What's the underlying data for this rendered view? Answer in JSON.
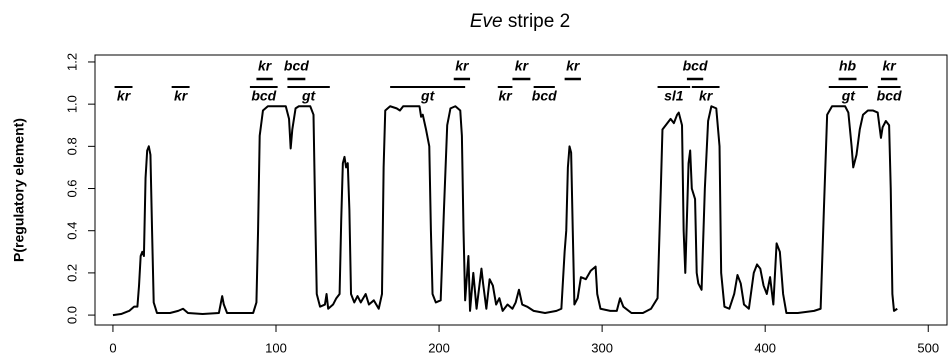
{
  "chart_data": {
    "type": "line",
    "title_parts": [
      "Eve",
      "stripe 2"
    ],
    "y_label": "P(regulatory element)",
    "color": "#000000",
    "xlim": [
      -11,
      511.5
    ],
    "ylim": [
      -0.047,
      1.233
    ],
    "xticks": [
      0,
      100,
      200,
      300,
      400,
      500
    ],
    "yticks": [
      {
        "value": 0,
        "label": "0.0"
      },
      0.2,
      0.4,
      0.6,
      0.8,
      {
        "value": 1,
        "label": "1.0"
      },
      1.2
    ],
    "x": [
      0,
      5,
      10,
      13,
      15,
      16,
      17,
      18,
      19,
      20,
      21,
      22,
      23,
      24,
      25,
      27,
      35,
      40,
      43,
      46,
      55,
      65,
      67,
      68,
      70,
      86,
      88,
      89,
      90,
      92,
      95,
      106,
      108,
      109,
      110,
      112,
      114,
      121,
      123,
      124,
      125,
      127,
      130,
      131,
      132,
      135,
      137,
      139,
      140,
      141,
      142,
      143,
      144,
      145,
      146,
      148,
      150,
      152,
      155,
      157,
      160,
      163,
      165,
      166,
      167,
      170,
      174,
      176,
      178,
      185,
      188,
      189,
      190,
      192,
      194,
      195,
      196,
      198,
      201,
      203,
      205,
      207,
      210,
      213,
      214,
      215,
      216,
      218,
      219,
      221,
      223,
      226,
      227,
      229,
      231,
      233,
      235,
      237,
      239,
      242,
      245,
      247,
      249,
      251,
      254,
      258,
      265,
      272,
      275,
      277,
      278,
      279,
      280,
      281,
      282,
      283,
      285,
      287,
      290,
      293,
      296,
      297,
      299,
      305,
      309,
      311,
      313,
      318,
      325,
      330,
      334,
      336,
      337,
      339,
      342,
      344,
      346,
      347,
      349,
      350,
      351,
      353,
      354,
      355,
      357,
      358,
      359,
      361,
      363,
      365,
      367,
      370,
      372,
      373,
      375,
      378,
      381,
      383,
      385,
      387,
      390,
      393,
      395,
      397,
      399,
      401,
      403,
      405,
      407,
      409,
      411,
      413,
      420,
      430,
      434,
      436,
      438,
      441,
      449,
      451,
      453,
      454,
      456,
      458,
      460,
      463,
      466,
      469,
      470,
      471,
      472,
      474,
      476,
      477,
      478,
      479,
      481
    ],
    "values": [
      0,
      0.005,
      0.02,
      0.04,
      0.04,
      0.14,
      0.28,
      0.3,
      0.28,
      0.65,
      0.78,
      0.8,
      0.76,
      0.4,
      0.06,
      0.01,
      0.01,
      0.02,
      0.03,
      0.01,
      0.005,
      0.01,
      0.09,
      0.05,
      0.01,
      0.01,
      0.06,
      0.4,
      0.85,
      0.97,
      0.99,
      0.99,
      0.93,
      0.79,
      0.88,
      0.98,
      0.99,
      0.99,
      0.95,
      0.5,
      0.1,
      0.04,
      0.05,
      0.1,
      0.03,
      0.05,
      0.08,
      0.1,
      0.45,
      0.72,
      0.75,
      0.7,
      0.72,
      0.5,
      0.1,
      0.06,
      0.09,
      0.06,
      0.1,
      0.05,
      0.07,
      0.03,
      0.1,
      0.7,
      0.97,
      0.99,
      0.98,
      0.97,
      0.99,
      0.99,
      0.99,
      0.94,
      0.95,
      0.88,
      0.8,
      0.4,
      0.1,
      0.06,
      0.07,
      0.5,
      0.9,
      0.98,
      0.99,
      0.97,
      0.85,
      0.4,
      0.07,
      0.28,
      0.02,
      0.2,
      0.03,
      0.22,
      0.15,
      0.03,
      0.17,
      0.14,
      0.05,
      0.08,
      0.02,
      0.05,
      0.03,
      0.06,
      0.12,
      0.05,
      0.04,
      0.02,
      0.01,
      0.02,
      0.03,
      0.3,
      0.4,
      0.7,
      0.8,
      0.77,
      0.4,
      0.05,
      0.08,
      0.18,
      0.17,
      0.21,
      0.23,
      0.1,
      0.03,
      0.02,
      0.02,
      0.08,
      0.04,
      0.01,
      0.01,
      0.03,
      0.08,
      0.6,
      0.88,
      0.9,
      0.93,
      0.91,
      0.95,
      0.96,
      0.9,
      0.4,
      0.2,
      0.72,
      0.78,
      0.6,
      0.55,
      0.2,
      0.15,
      0.12,
      0.6,
      0.92,
      0.99,
      0.98,
      0.8,
      0.2,
      0.04,
      0.03,
      0.1,
      0.19,
      0.15,
      0.05,
      0.03,
      0.2,
      0.24,
      0.22,
      0.14,
      0.1,
      0.18,
      0.05,
      0.34,
      0.3,
      0.1,
      0.01,
      0.01,
      0.02,
      0.03,
      0.5,
      0.95,
      0.99,
      0.99,
      0.96,
      0.8,
      0.7,
      0.76,
      0.88,
      0.95,
      0.97,
      0.97,
      0.96,
      0.9,
      0.84,
      0.89,
      0.92,
      0.9,
      0.6,
      0.1,
      0.02,
      0.03
    ],
    "annotations": [
      {
        "label": "kr",
        "start": 1,
        "end": 12,
        "row": "lower"
      },
      {
        "label": "kr",
        "start": 36,
        "end": 47,
        "row": "lower"
      },
      {
        "label": "kr",
        "start": 88,
        "end": 98,
        "row": "upper"
      },
      {
        "label": "bcd",
        "start": 84,
        "end": 101,
        "row": "lower"
      },
      {
        "label": "bcd",
        "start": 107,
        "end": 118,
        "row": "upper"
      },
      {
        "label": "gt",
        "start": 107,
        "end": 133,
        "row": "lower"
      },
      {
        "label": "gt",
        "start": 170,
        "end": 216,
        "row": "lower"
      },
      {
        "label": "kr",
        "start": 209,
        "end": 219,
        "row": "upper"
      },
      {
        "label": "kr",
        "start": 245,
        "end": 256,
        "row": "upper"
      },
      {
        "label": "kr",
        "start": 236,
        "end": 245,
        "row": "lower"
      },
      {
        "label": "bcd",
        "start": 258,
        "end": 271,
        "row": "lower"
      },
      {
        "label": "kr",
        "start": 277,
        "end": 287,
        "row": "upper"
      },
      {
        "label": "bcd",
        "start": 352,
        "end": 362,
        "row": "upper"
      },
      {
        "label": "sl1",
        "start": 334,
        "end": 354,
        "row": "lower"
      },
      {
        "label": "kr",
        "start": 355,
        "end": 372,
        "row": "lower"
      },
      {
        "label": "hb",
        "start": 445,
        "end": 456,
        "row": "upper"
      },
      {
        "label": "gt",
        "start": 439,
        "end": 463,
        "row": "lower"
      },
      {
        "label": "kr",
        "start": 471,
        "end": 481,
        "row": "upper"
      },
      {
        "label": "bcd",
        "start": 469,
        "end": 483,
        "row": "lower"
      }
    ]
  }
}
